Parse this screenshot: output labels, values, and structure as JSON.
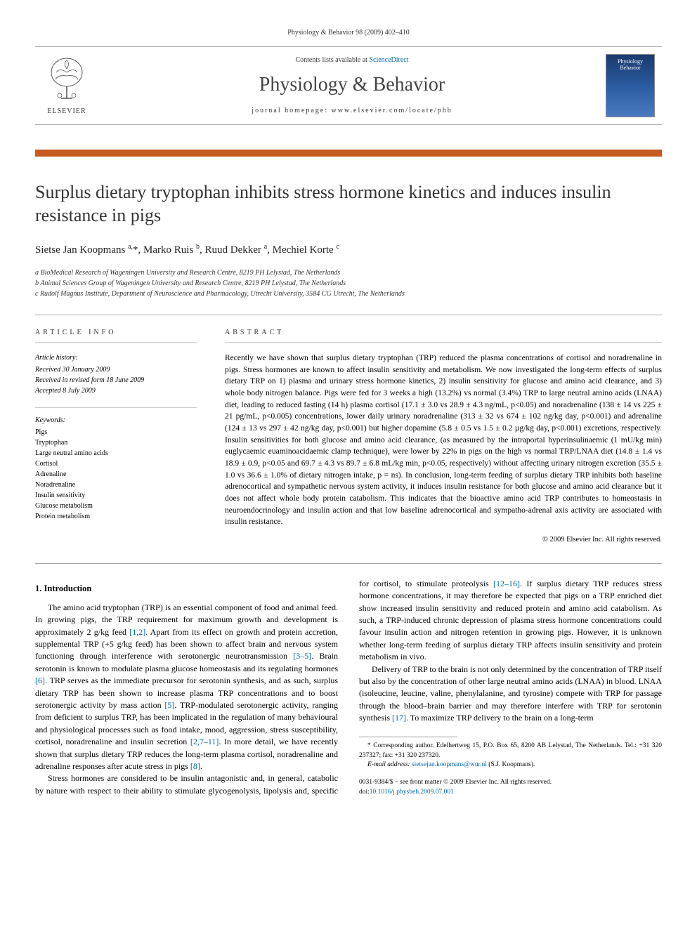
{
  "page_header": "Physiology & Behavior 98 (2009) 402–410",
  "masthead": {
    "contents_prefix": "Contents lists available at ",
    "contents_link": "ScienceDirect",
    "journal": "Physiology & Behavior",
    "homepage_prefix": "journal homepage: ",
    "homepage": "www.elsevier.com/locate/phb",
    "publisher_label": "ELSEVIER",
    "cover_line1": "Physiology",
    "cover_line2": "Behavior"
  },
  "title": "Surplus dietary tryptophan inhibits stress hormone kinetics and induces insulin resistance in pigs",
  "authors_html": "Sietse Jan Koopmans <sup>a,</sup>*, Marko Ruis <sup>b</sup>, Ruud Dekker <sup>a</sup>, Mechiel Korte <sup>c</sup>",
  "affiliations": {
    "a": "a BioMedical Research of Wageningen University and Research Centre, 8219 PH Lelystad, The Netherlands",
    "b": "b Animal Sciences Group of Wageningen University and Research Centre, 8219 PH Lelystad, The Netherlands",
    "c": "c Rudolf Magnus Institute, Department of Neuroscience and Pharmacology, Utrecht University, 3584 CG Utrecht, The Netherlands"
  },
  "info": {
    "article_info_label": "ARTICLE INFO",
    "abstract_label": "ABSTRACT",
    "history_label": "Article history:",
    "history": {
      "received": "Received 30 January 2009",
      "revised": "Received in revised form 18 June 2009",
      "accepted": "Accepted 8 July 2009"
    },
    "keywords_label": "Keywords:",
    "keywords": [
      "Pigs",
      "Tryptophan",
      "Large neutral amino acids",
      "Cortisol",
      "Adrenaline",
      "Noradrenaline",
      "Insulin sensitivity",
      "Glucose metabolism",
      "Protein metabolism"
    ]
  },
  "abstract": "Recently we have shown that surplus dietary tryptophan (TRP) reduced the plasma concentrations of cortisol and noradrenaline in pigs. Stress hormones are known to affect insulin sensitivity and metabolism. We now investigated the long-term effects of surplus dietary TRP on 1) plasma and urinary stress hormone kinetics, 2) insulin sensitivity for glucose and amino acid clearance, and 3) whole body nitrogen balance. Pigs were fed for 3 weeks a high (13.2%) vs normal (3.4%) TRP to large neutral amino acids (LNAA) diet, leading to reduced fasting (14 h) plasma cortisol (17.1 ± 3.0 vs 28.9 ± 4.3 ng/mL, p<0.05) and noradrenaline (138 ± 14 vs 225 ± 21 pg/mL, p<0.005) concentrations, lower daily urinary noradrenaline (313 ± 32 vs 674 ± 102 ng/kg day, p<0.001) and adrenaline (124 ± 13 vs 297 ± 42 ng/kg day, p<0.001) but higher dopamine (5.8 ± 0.5 vs 1.5 ± 0.2 µg/kg day, p<0.001) excretions, respectively. Insulin sensitivities for both glucose and amino acid clearance, (as measured by the intraportal hyperinsulinaemic (1 mU/kg min) euglycaemic euaminoacidaemic clamp technique), were lower by 22% in pigs on the high vs normal TRP/LNAA diet (14.8 ± 1.4 vs 18.9 ± 0.9, p<0.05 and 69.7 ± 4.3 vs 89.7 ± 6.8 mL/kg min, p<0.05, respectively) without affecting urinary nitrogen excretion (35.5 ± 1.0 vs 36.6 ± 1.0% of dietary nitrogen intake, p = ns). In conclusion, long-term feeding of surplus dietary TRP inhibits both baseline adrenocortical and sympathetic nervous system activity, it induces insulin resistance for both glucose and amino acid clearance but it does not affect whole body protein catabolism. This indicates that the bioactive amino acid TRP contributes to homeostasis in neuroendocrinology and insulin action and that low baseline adrenocortical and sympatho-adrenal axis activity are associated with insulin resistance.",
  "copyright": "© 2009 Elsevier Inc. All rights reserved.",
  "intro": {
    "heading": "1. Introduction",
    "p1_a": "The amino acid tryptophan (TRP) is an essential component of food and animal feed. In growing pigs, the TRP requirement for maximum growth and development is approximately 2 g/kg feed ",
    "p1_ref1": "[1,2]",
    "p1_b": ". Apart from its effect on growth and protein accretion, supplemental TRP (+5 g/kg feed) has been shown to affect brain and nervous system functioning through interference with serotonergic neurotransmission ",
    "p1_ref2": "[3–5]",
    "p1_c": ". Brain serotonin is known to modulate plasma glucose homeostasis and its regulating hormones ",
    "p1_ref3": "[6]",
    "p1_d": ". TRP serves as the immediate precursor for serotonin synthesis, and as such, surplus dietary TRP has been shown to increase plasma TRP concentrations and to boost serotonergic activity by mass action ",
    "p1_ref4": "[5]",
    "p1_e": ". TRP-modulated serotonergic activity, ranging from deficient to surplus TRP, has been implicated in the regulation of many behavioural and physiological processes such as food intake, mood, aggression, stress susceptibility, cortisol, noradre",
    "p1_f": "naline and insulin secretion ",
    "p1_ref5": "[2,7–11]",
    "p1_g": ". In more detail, we have recently shown that surplus dietary TRP reduces the long-term plasma cortisol, noradrenaline and adrenaline responses after acute stress in pigs ",
    "p1_ref6": "[8]",
    "p1_h": ".",
    "p2_a": "Stress hormones are considered to be insulin antagonistic and, in general, catabolic by nature with respect to their ability to stimulate glycogenolysis, lipolysis and, specific for cortisol, to stimulate proteolysis ",
    "p2_ref1": "[12–16]",
    "p2_b": ". If surplus dietary TRP reduces stress hormone concentrations, it may therefore be expected that pigs on a TRP enriched diet show increased insulin sensitivity and reduced protein and amino acid catabolism. As such, a TRP-induced chronic depression of plasma stress hormone concentrations could favour insulin action and nitrogen retention in growing pigs. However, it is unknown whether long-term feeding of surplus dietary TRP affects insulin sensitivity and protein metabolism in vivo.",
    "p3_a": "Delivery of TRP to the brain is not only determined by the concentration of TRP itself but also by the concentration of other large neutral amino acids (LNAA) in blood. LNAA (isoleucine, leucine, valine, phenylalanine, and tyrosine) compete with TRP for passage through the blood–brain barrier and may therefore interfere with TRP for serotonin synthesis ",
    "p3_ref1": "[17]",
    "p3_b": ". To maximize TRP delivery to the brain on a long-term"
  },
  "footnotes": {
    "corr": "* Corresponding author. Edelhertweg 15, P.O. Box 65, 8200 AB Lelystad, The Netherlands. Tel.: +31 320 237327; fax: +31 320 237320.",
    "email_label": "E-mail address: ",
    "email": "sietsejan.koopmans@wur.nl",
    "email_suffix": " (S.J. Koopmans).",
    "issn": "0031-9384/$ – see front matter © 2009 Elsevier Inc. All rights reserved.",
    "doi_label": "doi:",
    "doi": "10.1016/j.physbeh.2009.07.001"
  },
  "colors": {
    "accent": "#c75a1e",
    "link": "#0066aa",
    "rule": "#aaaaaa",
    "text": "#000000",
    "muted": "#333333"
  }
}
